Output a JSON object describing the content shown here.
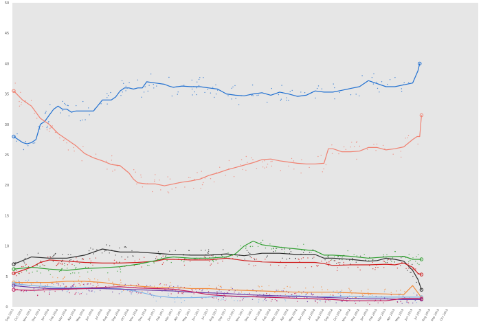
{
  "chart_data": {
    "type": "line",
    "title": "",
    "xlabel": "",
    "ylabel": "",
    "ylim": [
      0,
      50
    ],
    "grid": false,
    "background": "#e6e6e6",
    "yticks": [
      "0",
      "5",
      "10",
      "15",
      "20",
      "25",
      "30",
      "35",
      "40",
      "45",
      "50"
    ],
    "xticks": [
      "Sep 2015",
      "Oct 2015",
      "Nov 2015",
      "Dec 2015",
      "Jan 2016",
      "Feb 2016",
      "Mar 2016",
      "Apr 2016",
      "May 2016",
      "Jun 2016",
      "Jul 2016",
      "Aug 2016",
      "Sep 2016",
      "Oct 2016",
      "Nov 2016",
      "Dec 2016",
      "Jan 2017",
      "Feb 2017",
      "Mar 2017",
      "Apr 2017",
      "May 2017",
      "Jun 2017",
      "Jul 2017",
      "Aug 2017",
      "Sep 2017",
      "Oct 2017",
      "Nov 2017",
      "Dec 2017",
      "Jan 2018",
      "Feb 2018",
      "Mar 2018",
      "Apr 2018",
      "May 2018",
      "Jun 2018",
      "Jul 2018",
      "Aug 2018",
      "Sep 2018",
      "Oct 2018",
      "Nov 2018",
      "Dec 2018",
      "Jan 2019",
      "Feb 2019",
      "Mar 2019",
      "Apr 2019",
      "May 2019",
      "Jun 2019",
      "Jul 2019",
      "Aug 2019",
      "Sep 2019",
      "Oct 2019"
    ],
    "series": [
      {
        "color": "#1f6fd1",
        "x": [
          0,
          1,
          1.5,
          2,
          2.5,
          3,
          3.5,
          4,
          4.5,
          5,
          5.5,
          6,
          6.5,
          7,
          8,
          9,
          10,
          11,
          11.5,
          12,
          12.5,
          13,
          13.5,
          14,
          14.5,
          15,
          16,
          17,
          17.5,
          18,
          19,
          20,
          21,
          22,
          23,
          24,
          25,
          26,
          27,
          28,
          29,
          30,
          31,
          32,
          33,
          34,
          35,
          36,
          37,
          38,
          39,
          40,
          41,
          42,
          43,
          44,
          45,
          45.6,
          45.8
        ],
        "values": [
          28,
          27,
          26.8,
          27,
          27.5,
          30,
          30.5,
          31.5,
          32.5,
          33,
          32.5,
          32.5,
          32,
          32.2,
          32.2,
          32.2,
          34,
          34,
          34.5,
          35.5,
          36,
          36,
          35.8,
          36,
          36,
          37,
          36.8,
          36.6,
          36.3,
          36.1,
          36.3,
          36.2,
          36.2,
          36,
          35.8,
          35,
          34.8,
          34.7,
          35,
          35.2,
          34.8,
          35.3,
          35,
          34.6,
          34.8,
          35.5,
          35.3,
          35.3,
          35.6,
          35.9,
          36.2,
          37.2,
          36.7,
          36.2,
          36.2,
          36.5,
          36.8,
          38.8,
          40
        ]
      },
      {
        "color": "#f08070",
        "x": [
          0,
          1,
          2,
          3,
          4,
          5,
          6,
          7,
          8,
          9,
          10,
          11,
          12,
          13,
          13.5,
          14,
          15,
          16,
          17,
          18,
          19,
          20,
          21,
          22,
          23,
          24,
          25,
          26,
          27,
          28,
          29,
          30,
          31,
          32,
          33,
          34,
          35,
          35.5,
          36,
          37,
          38,
          39,
          40,
          41,
          42,
          43,
          44,
          45,
          45.5,
          45.8,
          46
        ],
        "values": [
          35.5,
          34,
          33,
          31,
          30,
          28.5,
          27.5,
          26.5,
          25.2,
          24.5,
          24,
          23.4,
          23.2,
          22,
          21,
          20.4,
          20.2,
          20.2,
          19.9,
          20.2,
          20.5,
          20.7,
          21,
          21.6,
          22,
          22.5,
          22.9,
          23.3,
          23.7,
          24.2,
          24.3,
          24,
          23.8,
          23.6,
          23.5,
          23.5,
          23.6,
          26,
          26,
          25.5,
          25.5,
          25.6,
          26.2,
          26.2,
          25.8,
          26,
          26.3,
          27.5,
          28,
          28,
          31.5
        ]
      },
      {
        "color": "#2a2a2a",
        "x": [
          0,
          2,
          4,
          6,
          8,
          10,
          12,
          14,
          16,
          18,
          20,
          22,
          24,
          26,
          28,
          30,
          32,
          34,
          35,
          36,
          38,
          40,
          41,
          42,
          43,
          44,
          45,
          45.6,
          46
        ],
        "values": [
          7,
          8.2,
          8,
          8,
          8.5,
          9.5,
          9,
          9,
          8.8,
          8.6,
          8.5,
          8.5,
          8.7,
          8.4,
          8.8,
          8.8,
          8.6,
          8.6,
          8,
          8,
          7.8,
          7.5,
          7.6,
          8,
          7.8,
          7.5,
          6,
          4.5,
          2.8
        ]
      },
      {
        "color": "#cf1b1b",
        "x": [
          0,
          2,
          3,
          4,
          6,
          8,
          10,
          12,
          14,
          16,
          17,
          18,
          20,
          22,
          24,
          26,
          28,
          30,
          32,
          34,
          35,
          36,
          38,
          40,
          42,
          43,
          44,
          45,
          45.6,
          46
        ],
        "values": [
          5.5,
          6.5,
          7.3,
          7.7,
          7.5,
          7.3,
          7.2,
          7.2,
          7.3,
          7.5,
          7.8,
          7.8,
          7.7,
          7.7,
          8,
          7.6,
          7.4,
          7.3,
          7.3,
          7.3,
          7.1,
          6.8,
          6.9,
          6.9,
          7,
          6.9,
          7.2,
          6.5,
          5.5,
          5.3
        ]
      },
      {
        "color": "#2e9e2e",
        "x": [
          0,
          2,
          4,
          6,
          8,
          10,
          12,
          14,
          15,
          16,
          17,
          18,
          20,
          22,
          24,
          25,
          26,
          27,
          28,
          30,
          32,
          34,
          35,
          36,
          38,
          40,
          42,
          44,
          45,
          46
        ],
        "values": [
          6.2,
          6.5,
          6.2,
          6,
          6.3,
          6.4,
          6.6,
          7,
          7.3,
          7.6,
          8,
          8.2,
          8,
          8,
          8.2,
          8.7,
          10,
          10.8,
          10.2,
          9.8,
          9.5,
          9.2,
          8.5,
          8.5,
          8.3,
          8,
          8.2,
          8.3,
          7.8,
          7.8
        ]
      },
      {
        "color": "#f28c3c",
        "x": [
          0,
          2,
          4,
          6,
          8,
          10,
          12,
          14,
          16,
          18,
          20,
          22,
          24,
          26,
          28,
          30,
          32,
          34,
          36,
          38,
          40,
          42,
          44,
          45,
          46
        ],
        "values": [
          4,
          4,
          4,
          4.2,
          4.2,
          4,
          3.6,
          3.4,
          3.2,
          3.2,
          3,
          3,
          2.8,
          2.7,
          2.6,
          2.5,
          2.4,
          2.4,
          2.4,
          2.3,
          2.2,
          2.1,
          2,
          3.5,
          1.5
        ]
      },
      {
        "color": "#7fb3e6",
        "x": [
          0,
          2,
          4,
          6,
          8,
          10,
          12,
          14,
          16,
          18,
          20,
          22,
          24,
          26,
          28,
          30,
          32,
          34,
          36,
          38,
          40,
          42,
          44,
          46
        ],
        "values": [
          3.8,
          3.5,
          3.3,
          3.1,
          3.2,
          3.1,
          3,
          2.5,
          1.8,
          1.5,
          1.5,
          1.6,
          1.8,
          1.6,
          1.7,
          1.8,
          1.8,
          1.6,
          1.7,
          1.7,
          1.6,
          1.6,
          1.6,
          1.6
        ]
      },
      {
        "color": "#6a3aa8",
        "x": [
          0,
          2,
          4,
          6,
          8,
          10,
          12,
          14,
          16,
          18,
          20,
          22,
          24,
          26,
          28,
          30,
          32,
          34,
          36,
          38,
          40,
          42,
          44,
          46
        ],
        "values": [
          3.5,
          3.2,
          3,
          3,
          3,
          3,
          2.9,
          2.8,
          2.7,
          2.6,
          2.4,
          2.3,
          2.2,
          2,
          1.9,
          1.8,
          1.7,
          1.6,
          1.5,
          1.4,
          1.3,
          1.3,
          1.2,
          1.2
        ]
      },
      {
        "color": "#c2185b",
        "x": [
          0,
          2,
          4,
          6,
          8,
          10,
          12,
          14,
          16,
          18,
          20,
          22,
          24,
          26,
          28,
          30,
          32,
          34,
          36,
          38,
          40,
          42,
          44,
          45.5,
          46
        ],
        "values": [
          2.8,
          2.7,
          2.8,
          2.9,
          3,
          3.2,
          3.3,
          3.1,
          3,
          2.9,
          2.5,
          2,
          1.8,
          1.7,
          1.6,
          1.5,
          1.4,
          1.3,
          1.2,
          1,
          1,
          1,
          1.4,
          1.4,
          1.3
        ]
      }
    ]
  }
}
